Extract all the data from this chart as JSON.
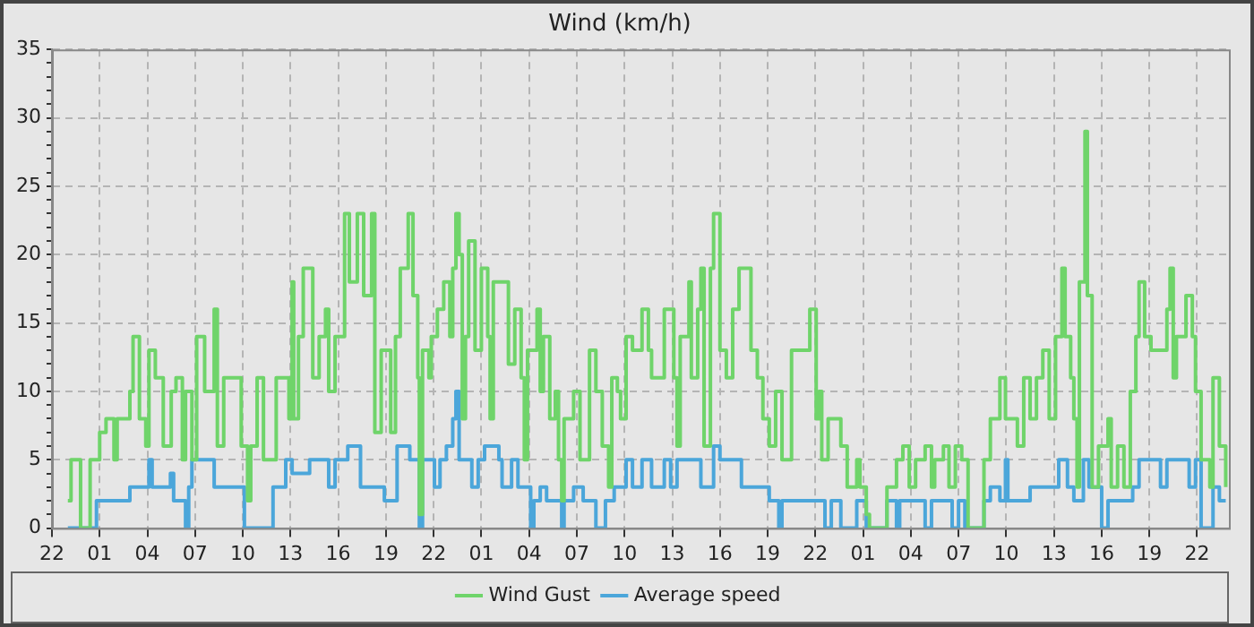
{
  "chart_data": {
    "type": "step",
    "title": "Wind (km/h)",
    "legend": "bottom",
    "grid": true,
    "xlim": [
      "--01-01T22:00",
      "--01-05T00:00"
    ],
    "xticks": [
      {
        "value": "--01-01T22:00",
        "label": "22"
      },
      {
        "value": "--01-02T01:00",
        "label": "01"
      },
      {
        "value": "--01-02T04:00",
        "label": "04"
      },
      {
        "value": "--01-02T07:00",
        "label": "07"
      },
      {
        "value": "--01-02T10:00",
        "label": "10"
      },
      {
        "value": "--01-02T13:00",
        "label": "13"
      },
      {
        "value": "--01-02T16:00",
        "label": "16"
      },
      {
        "value": "--01-02T19:00",
        "label": "19"
      },
      {
        "value": "--01-02T22:00",
        "label": "22"
      },
      {
        "value": "--01-03T01:00",
        "label": "01"
      },
      {
        "value": "--01-03T04:00",
        "label": "04"
      },
      {
        "value": "--01-03T07:00",
        "label": "07"
      },
      {
        "value": "--01-03T10:00",
        "label": "10"
      },
      {
        "value": "--01-03T13:00",
        "label": "13"
      },
      {
        "value": "--01-03T16:00",
        "label": "16"
      },
      {
        "value": "--01-03T19:00",
        "label": "19"
      },
      {
        "value": "--01-03T22:00",
        "label": "22"
      },
      {
        "value": "--01-04T01:00",
        "label": "01"
      },
      {
        "value": "--01-04T04:00",
        "label": "04"
      },
      {
        "value": "--01-04T07:00",
        "label": "07"
      },
      {
        "value": "--01-04T10:00",
        "label": "10"
      },
      {
        "value": "--01-04T13:00",
        "label": "13"
      },
      {
        "value": "--01-04T16:00",
        "label": "16"
      },
      {
        "value": "--01-04T19:00",
        "label": "19"
      },
      {
        "value": "--01-04T22:00",
        "label": "22"
      }
    ],
    "ylim": [
      0,
      35
    ],
    "yticks": [
      0,
      {
        "value": 1,
        "label": null
      },
      {
        "value": 2,
        "label": null
      },
      {
        "value": 3,
        "label": null
      },
      {
        "value": 4,
        "label": null
      },
      5,
      {
        "value": 6,
        "label": null
      },
      {
        "value": 7,
        "label": null
      },
      {
        "value": 8,
        "label": null
      },
      {
        "value": 9,
        "label": null
      },
      10,
      {
        "value": 11,
        "label": null
      },
      {
        "value": 12,
        "label": null
      },
      {
        "value": 13,
        "label": null
      },
      {
        "value": 14,
        "label": null
      },
      15,
      {
        "value": 16,
        "label": null
      },
      {
        "value": 17,
        "label": null
      },
      {
        "value": 18,
        "label": null
      },
      {
        "value": 19,
        "label": null
      },
      20,
      {
        "value": 21,
        "label": null
      },
      {
        "value": 22,
        "label": null
      },
      {
        "value": 23,
        "label": null
      },
      {
        "value": 24,
        "label": null
      },
      25,
      {
        "value": 26,
        "label": null
      },
      {
        "value": 27,
        "label": null
      },
      {
        "value": 28,
        "label": null
      },
      {
        "value": 29,
        "label": null
      },
      30,
      {
        "value": 31,
        "label": null
      },
      {
        "value": 32,
        "label": null
      },
      {
        "value": 33,
        "label": null
      },
      {
        "value": 34,
        "label": null
      },
      35
    ],
    "series": [
      {
        "name": "Wind Gust",
        "color": "#6fd46a",
        "x": [
          "--01-01T23:00",
          "--01-01T23:12",
          "--01-01T23:48",
          "--01-02T00:24",
          "--01-02T01:00",
          "--01-02T01:24",
          "--01-02T01:54",
          "--01-02T02:06",
          "--01-02T02:54",
          "--01-02T03:06",
          "--01-02T03:30",
          "--01-02T03:54",
          "--01-02T04:06",
          "--01-02T04:30",
          "--01-02T05:00",
          "--01-02T05:30",
          "--01-02T05:48",
          "--01-02T06:12",
          "--01-02T06:24",
          "--01-02T06:48",
          "--01-02T07:06",
          "--01-02T07:36",
          "--01-02T08:12",
          "--01-02T08:24",
          "--01-02T08:48",
          "--01-02T09:54",
          "--01-02T10:18",
          "--01-02T10:30",
          "--01-02T10:54",
          "--01-02T11:18",
          "--01-02T12:06",
          "--01-02T12:54",
          "--01-02T13:06",
          "--01-02T13:12",
          "--01-02T13:30",
          "--01-02T13:48",
          "--01-02T14:24",
          "--01-02T14:48",
          "--01-02T15:12",
          "--01-02T15:24",
          "--01-02T15:48",
          "--01-02T16:24",
          "--01-02T16:42",
          "--01-02T17:12",
          "--01-02T17:36",
          "--01-02T18:06",
          "--01-02T18:18",
          "--01-02T18:42",
          "--01-02T19:18",
          "--01-02T19:36",
          "--01-02T19:54",
          "--01-02T20:24",
          "--01-02T20:42",
          "--01-02T21:00",
          "--01-02T21:06",
          "--01-02T21:18",
          "--01-02T21:42",
          "--01-02T21:51",
          "--01-02T22:14",
          "--01-02T22:38",
          "--01-02T23:01",
          "--01-02T23:12",
          "--01-02T23:24",
          "--01-02T23:36",
          "--01-02T23:48",
          "--01-03T00:00",
          "--01-03T00:12",
          "--01-03T00:36",
          "--01-03T01:00",
          "--01-03T01:24",
          "--01-03T01:33",
          "--01-03T01:45",
          "--01-03T02:42",
          "--01-03T03:06",
          "--01-03T03:30",
          "--01-03T03:42",
          "--01-03T03:54",
          "--01-03T04:30",
          "--01-03T04:42",
          "--01-03T04:54",
          "--01-03T05:18",
          "--01-03T05:39",
          "--01-03T05:51",
          "--01-03T06:03",
          "--01-03T06:12",
          "--01-03T06:48",
          "--01-03T07:12",
          "--01-03T07:48",
          "--01-03T08:12",
          "--01-03T08:36",
          "--01-03T09:00",
          "--01-03T09:12",
          "--01-03T09:33",
          "--01-03T09:45",
          "--01-03T10:06",
          "--01-03T10:30",
          "--01-03T11:06",
          "--01-03T11:30",
          "--01-03T11:42",
          "--01-03T12:30",
          "--01-03T13:06",
          "--01-03T13:18",
          "--01-03T13:30",
          "--01-03T14:03",
          "--01-03T14:12",
          "--01-03T14:36",
          "--01-03T14:48",
          "--01-03T15:00",
          "--01-03T15:24",
          "--01-03T15:36",
          "--01-03T16:00",
          "--01-03T16:24",
          "--01-03T16:48",
          "--01-03T17:12",
          "--01-03T17:57",
          "--01-03T18:21",
          "--01-03T18:42",
          "--01-03T19:06",
          "--01-03T19:30",
          "--01-03T19:54",
          "--01-03T20:30",
          "--01-03T21:39",
          "--01-03T22:03",
          "--01-03T22:14",
          "--01-03T22:24",
          "--01-03T22:48",
          "--01-03T23:36",
          "--01-04T00:00",
          "--01-04T00:36",
          "--01-04T00:48",
          "--01-04T01:12",
          "--01-04T01:24",
          "--01-04T02:30",
          "--01-04T03:06",
          "--01-04T03:30",
          "--01-04T03:54",
          "--01-04T04:18",
          "--01-04T04:54",
          "--01-04T05:18",
          "--01-04T05:30",
          "--01-04T06:03",
          "--01-04T06:24",
          "--01-04T06:48",
          "--01-04T07:12",
          "--01-04T07:36",
          "--01-04T08:36",
          "--01-04T09:00",
          "--01-04T09:36",
          "--01-04T09:57",
          "--01-04T10:42",
          "--01-04T11:06",
          "--01-04T11:30",
          "--01-04T11:54",
          "--01-04T12:18",
          "--01-04T12:42",
          "--01-04T13:06",
          "--01-04T13:30",
          "--01-04T13:42",
          "--01-04T14:03",
          "--01-04T14:15",
          "--01-04T14:27",
          "--01-04T14:36",
          "--01-04T14:57",
          "--01-04T15:06",
          "--01-04T15:24",
          "--01-04T15:48",
          "--01-04T16:24",
          "--01-04T16:36",
          "--01-04T17:00",
          "--01-04T17:24",
          "--01-04T17:48",
          "--01-04T18:09",
          "--01-04T18:21",
          "--01-04T18:42",
          "--01-04T19:06",
          "--01-04T20:06",
          "--01-04T20:18",
          "--01-04T20:30",
          "--01-04T20:42",
          "--01-04T21:18",
          "--01-04T21:42",
          "--01-04T21:54",
          "--01-04T22:15",
          "--01-04T22:48",
          "--01-04T23:00",
          "--01-04T23:24",
          "--01-04T23:48"
        ],
        "values": [
          2,
          5,
          0,
          5,
          7,
          8,
          5,
          8,
          10,
          14,
          8,
          6,
          13,
          11,
          6,
          10,
          11,
          5,
          10,
          5,
          14,
          10,
          16,
          6,
          11,
          6,
          2,
          6,
          11,
          5,
          11,
          8,
          18,
          8,
          14,
          19,
          11,
          14,
          16,
          10,
          14,
          23,
          18,
          23,
          17,
          23,
          7,
          13,
          7,
          14,
          19,
          23,
          17,
          11,
          1,
          13,
          11,
          14,
          16,
          18,
          14,
          19,
          23,
          20,
          8,
          14,
          21,
          13,
          19,
          14,
          8,
          18,
          12,
          16,
          11,
          5,
          13,
          16,
          10,
          14,
          8,
          10,
          5,
          2,
          8,
          10,
          5,
          13,
          10,
          6,
          3,
          11,
          10,
          8,
          14,
          13,
          16,
          13,
          11,
          16,
          11,
          6,
          14,
          18,
          11,
          16,
          19,
          6,
          19,
          23,
          13,
          11,
          16,
          19,
          13,
          11,
          8,
          6,
          10,
          5,
          13,
          16,
          8,
          10,
          5,
          8,
          6,
          3,
          5,
          3,
          1,
          0,
          3,
          5,
          6,
          3,
          5,
          6,
          3,
          5,
          6,
          3,
          6,
          5,
          0,
          5,
          8,
          11,
          8,
          6,
          11,
          8,
          11,
          13,
          8,
          14,
          19,
          14,
          11,
          8,
          3,
          18,
          29,
          17,
          3,
          6,
          8,
          3,
          6,
          3,
          10,
          14,
          18,
          14,
          13,
          16,
          19,
          11,
          14,
          17,
          14,
          10,
          5,
          3,
          11,
          6,
          3
        ]
      },
      {
        "name": "Average speed",
        "color": "#4ba6da",
        "x": [
          "--01-01T23:00",
          "--01-02T00:48",
          "--01-02T02:54",
          "--01-02T04:06",
          "--01-02T04:18",
          "--01-02T05:27",
          "--01-02T05:39",
          "--01-02T06:24",
          "--01-02T06:36",
          "--01-02T06:48",
          "--01-02T08:12",
          "--01-02T10:06",
          "--01-02T11:54",
          "--01-02T12:42",
          "--01-02T13:06",
          "--01-02T14:12",
          "--01-02T15:24",
          "--01-02T15:48",
          "--01-02T16:36",
          "--01-02T17:24",
          "--01-02T18:54",
          "--01-02T19:42",
          "--01-02T20:30",
          "--01-02T21:06",
          "--01-02T21:18",
          "--01-02T22:03",
          "--01-02T22:24",
          "--01-02T22:48",
          "--01-02T23:12",
          "--01-02T23:24",
          "--01-02T23:36",
          "--01-03T00:24",
          "--01-03T00:48",
          "--01-03T01:12",
          "--01-03T02:06",
          "--01-03T02:18",
          "--01-03T02:54",
          "--01-03T03:18",
          "--01-03T04:06",
          "--01-03T04:18",
          "--01-03T04:42",
          "--01-03T05:06",
          "--01-03T06:03",
          "--01-03T06:12",
          "--01-03T06:48",
          "--01-03T07:24",
          "--01-03T08:12",
          "--01-03T08:48",
          "--01-03T09:21",
          "--01-03T10:06",
          "--01-03T10:30",
          "--01-03T11:06",
          "--01-03T11:42",
          "--01-03T12:30",
          "--01-03T12:54",
          "--01-03T13:18",
          "--01-03T14:48",
          "--01-03T15:36",
          "--01-03T16:00",
          "--01-03T17:21",
          "--01-03T19:06",
          "--01-03T19:42",
          "--01-03T19:54",
          "--01-03T22:36",
          "--01-03T23:00",
          "--01-03T23:36",
          "--01-04T00:36",
          "--01-04T01:12",
          "--01-04T02:30",
          "--01-04T03:06",
          "--01-04T03:18",
          "--01-04T04:54",
          "--01-04T05:18",
          "--01-04T06:36",
          "--01-04T07:00",
          "--01-04T07:24",
          "--01-04T08:36",
          "--01-04T09:00",
          "--01-04T09:36",
          "--01-04T09:57",
          "--01-04T10:06",
          "--01-04T11:30",
          "--01-04T13:18",
          "--01-04T13:51",
          "--01-04T14:15",
          "--01-04T14:51",
          "--01-04T15:12",
          "--01-04T16:00",
          "--01-04T16:24",
          "--01-04T17:57",
          "--01-04T18:21",
          "--01-04T19:42",
          "--01-04T20:06",
          "--01-04T21:30",
          "--01-04T21:54",
          "--01-04T22:15",
          "--01-04T23:00",
          "--01-04T23:24",
          "--01-04T23:48"
        ],
        "values": [
          0,
          2,
          3,
          5,
          3,
          4,
          2,
          0,
          3,
          5,
          3,
          0,
          3,
          5,
          4,
          5,
          3,
          5,
          6,
          3,
          2,
          6,
          5,
          0,
          5,
          3,
          5,
          6,
          8,
          10,
          5,
          3,
          5,
          6,
          5,
          3,
          5,
          3,
          0,
          2,
          3,
          2,
          0,
          2,
          3,
          2,
          0,
          2,
          3,
          5,
          3,
          5,
          3,
          5,
          3,
          5,
          3,
          6,
          5,
          3,
          2,
          0,
          2,
          0,
          2,
          0,
          2,
          0,
          2,
          0,
          2,
          0,
          2,
          0,
          2,
          0,
          2,
          3,
          2,
          5,
          2,
          3,
          5,
          3,
          2,
          5,
          3,
          0,
          2,
          3,
          5,
          3,
          5,
          3,
          5,
          0,
          3,
          2,
          2
        ]
      }
    ]
  }
}
